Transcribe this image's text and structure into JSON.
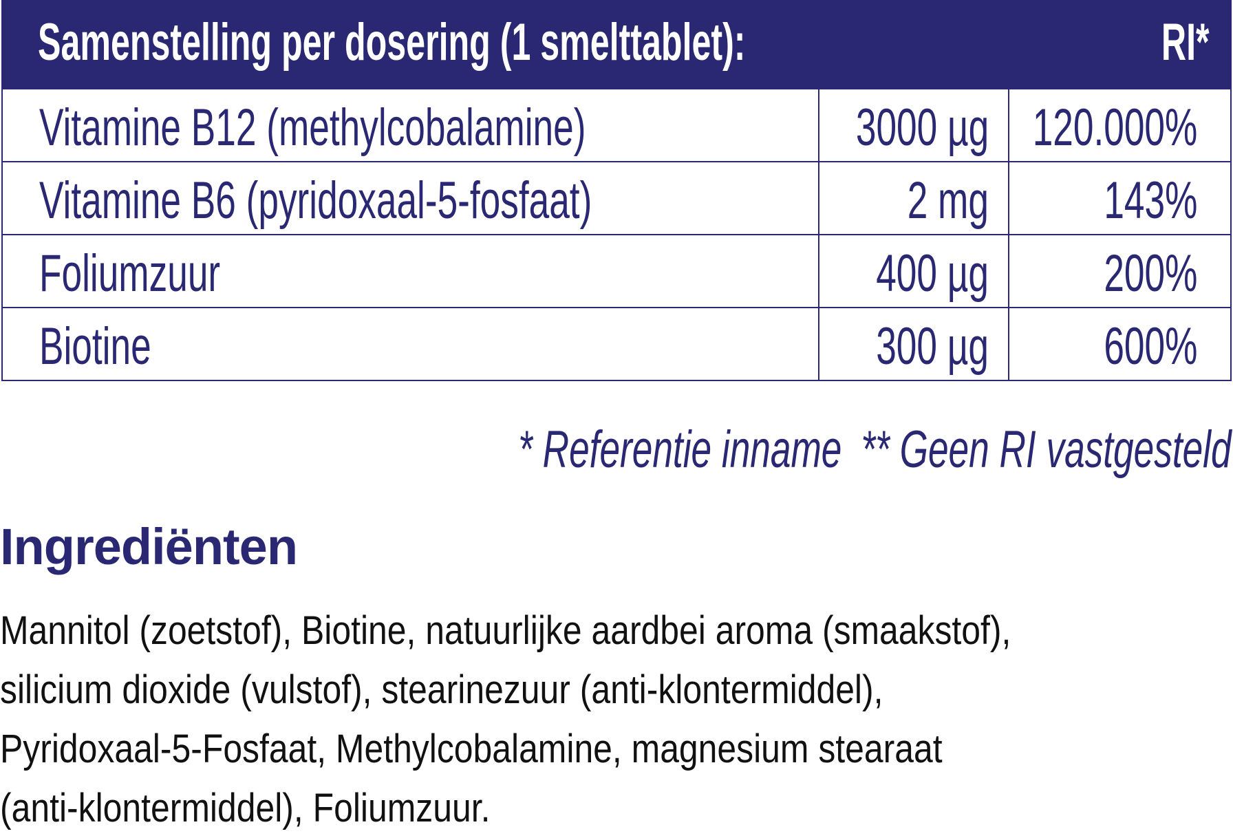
{
  "table": {
    "header": {
      "title": "Samenstelling per dosering (1 smelttablet):",
      "ri": "RI*"
    },
    "rows": [
      {
        "name": "Vitamine B12 (methylcobalamine)",
        "amount": "3000 µg",
        "ri": "120.000%"
      },
      {
        "name": "Vitamine B6 (pyridoxaal-5-fosfaat)",
        "amount": "2 mg",
        "ri": "143%"
      },
      {
        "name": "Foliumzuur",
        "amount": "400 µg",
        "ri": "200%"
      },
      {
        "name": "Biotine",
        "amount": "300 µg",
        "ri": "600%"
      }
    ]
  },
  "footnote": {
    "ri": "* Referentie inname",
    "no_ri": "** Geen RI vastgesteld"
  },
  "ingredients": {
    "heading": "Ingrediënten",
    "lines": [
      "Mannitol (zoetstof), Biotine, natuurlijke aardbei aroma (smaakstof),",
      "silicium dioxide (vulstof), stearinezuur (anti-klontermiddel),",
      "Pyridoxaal-5-Fosfaat, Methylcobalamine, magnesium stearaat",
      "(anti-klontermiddel), Foliumzuur."
    ]
  },
  "colors": {
    "navy": "#2a2872"
  }
}
